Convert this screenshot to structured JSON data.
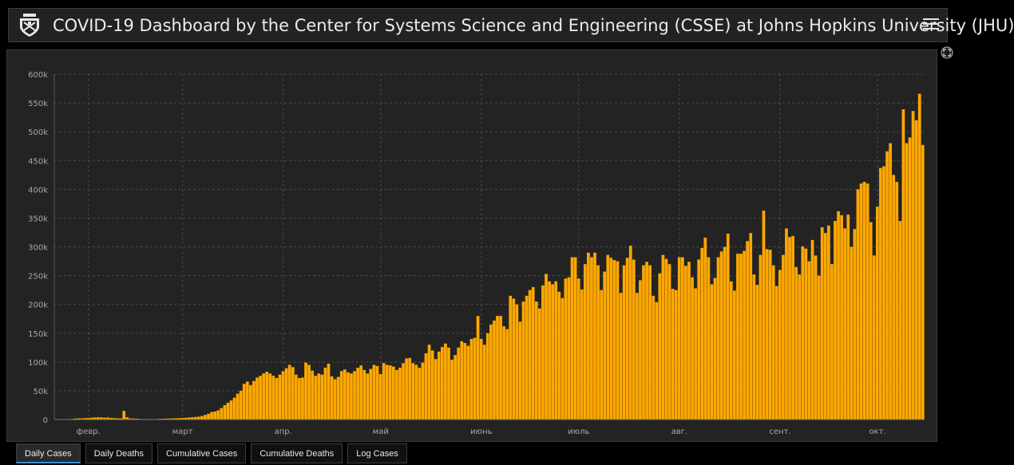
{
  "header": {
    "title": "COVID-19 Dashboard by the Center for Systems Science and Engineering (CSSE) at Johns Hopkins University (JHU)",
    "logo_icon": "university-shield-icon",
    "menu_icon": "hamburger-menu-icon"
  },
  "colors": {
    "bar": "#FFA800",
    "background": "#232323",
    "grid": "#4a4a4a",
    "text": "#a8a8a8",
    "active_tab_accent": "#3b8fd6"
  },
  "tabs": [
    {
      "label": "Daily Cases",
      "active": true
    },
    {
      "label": "Daily Deaths",
      "active": false
    },
    {
      "label": "Cumulative Cases",
      "active": false
    },
    {
      "label": "Cumulative Deaths",
      "active": false
    },
    {
      "label": "Log Cases",
      "active": false
    }
  ],
  "chart_data": {
    "type": "bar",
    "title": "",
    "xlabel": "",
    "ylabel": "",
    "grid": true,
    "ylim": [
      0,
      600000
    ],
    "yticks": [
      {
        "value": 0,
        "label": "0"
      },
      {
        "value": 50000,
        "label": "50k"
      },
      {
        "value": 100000,
        "label": "100k"
      },
      {
        "value": 150000,
        "label": "150k"
      },
      {
        "value": 200000,
        "label": "200k"
      },
      {
        "value": 250000,
        "label": "250k"
      },
      {
        "value": 300000,
        "label": "300k"
      },
      {
        "value": 350000,
        "label": "350k"
      },
      {
        "value": 400000,
        "label": "400k"
      },
      {
        "value": 450000,
        "label": "450k"
      },
      {
        "value": 500000,
        "label": "500k"
      },
      {
        "value": 550000,
        "label": "550k"
      },
      {
        "value": 600000,
        "label": "600k"
      }
    ],
    "x_start": "2020-01-22",
    "xticks": [
      {
        "day": 10,
        "label": "февр."
      },
      {
        "day": 39,
        "label": "март"
      },
      {
        "day": 70,
        "label": "апр."
      },
      {
        "day": 100,
        "label": "май"
      },
      {
        "day": 131,
        "label": "июнь"
      },
      {
        "day": 161,
        "label": "июль"
      },
      {
        "day": 192,
        "label": "авг."
      },
      {
        "day": 223,
        "label": "сент."
      },
      {
        "day": 253,
        "label": "окт."
      }
    ],
    "values": [
      550,
      100,
      300,
      500,
      700,
      1000,
      1800,
      2000,
      2100,
      2600,
      2800,
      3200,
      3600,
      3900,
      3700,
      3200,
      3500,
      2700,
      2500,
      2200,
      2000,
      15000,
      4000,
      1800,
      1700,
      1500,
      900,
      800,
      900,
      600,
      500,
      800,
      1200,
      1400,
      1600,
      1800,
      2000,
      2200,
      2500,
      2800,
      3000,
      3500,
      4000,
      4500,
      5000,
      6000,
      8000,
      10000,
      13000,
      14000,
      16000,
      20000,
      25000,
      29000,
      33000,
      38000,
      45000,
      50000,
      62000,
      66000,
      60000,
      67000,
      73000,
      76000,
      80000,
      83000,
      80000,
      76000,
      72000,
      78000,
      84000,
      89000,
      95000,
      91000,
      78000,
      72000,
      73000,
      99000,
      95000,
      85000,
      76000,
      80000,
      78000,
      90000,
      97000,
      75000,
      70000,
      74000,
      84000,
      87000,
      82000,
      80000,
      84000,
      90000,
      94000,
      86000,
      80000,
      88000,
      95000,
      93000,
      79000,
      98000,
      95000,
      94000,
      92000,
      86000,
      90000,
      98000,
      106000,
      107000,
      98000,
      95000,
      90000,
      99000,
      115000,
      130000,
      120000,
      105000,
      118000,
      126000,
      132000,
      125000,
      104000,
      112000,
      125000,
      136000,
      133000,
      128000,
      140000,
      142000,
      180000,
      140000,
      130000,
      150000,
      165000,
      172000,
      180000,
      180000,
      162000,
      157000,
      215000,
      210000,
      200000,
      170000,
      205000,
      215000,
      225000,
      230000,
      205000,
      193000,
      233000,
      253000,
      240000,
      235000,
      240000,
      222000,
      211000,
      245000,
      247000,
      282000,
      282000,
      245000,
      226000,
      270000,
      290000,
      282000,
      290000,
      268000,
      225000,
      257000,
      286000,
      281000,
      277000,
      275000,
      220000,
      268000,
      281000,
      302000,
      278000,
      220000,
      242000,
      268000,
      274000,
      268000,
      215000,
      204000,
      254000,
      286000,
      279000,
      270000,
      227000,
      225000,
      282000,
      282000,
      267000,
      274000,
      247000,
      228000,
      278000,
      298000,
      316000,
      282000,
      235000,
      246000,
      282000,
      292000,
      300000,
      323000,
      240000,
      224000,
      288000,
      288000,
      293000,
      310000,
      324000,
      252000,
      234000,
      286000,
      363000,
      296000,
      295000,
      268000,
      232000,
      260000,
      286000,
      332000,
      317000,
      319000,
      265000,
      252000,
      301000,
      297000,
      275000,
      312000,
      285000,
      250000,
      334000,
      324000,
      337000,
      270000,
      345000,
      362000,
      355000,
      332000,
      356000,
      300000,
      331000,
      400000,
      410000,
      413000,
      410000,
      343000,
      285000,
      370000,
      437000,
      440000,
      466000,
      480000,
      425000,
      413000,
      345000,
      539000,
      480000,
      490000,
      536000,
      520000,
      566000,
      477000
    ]
  }
}
